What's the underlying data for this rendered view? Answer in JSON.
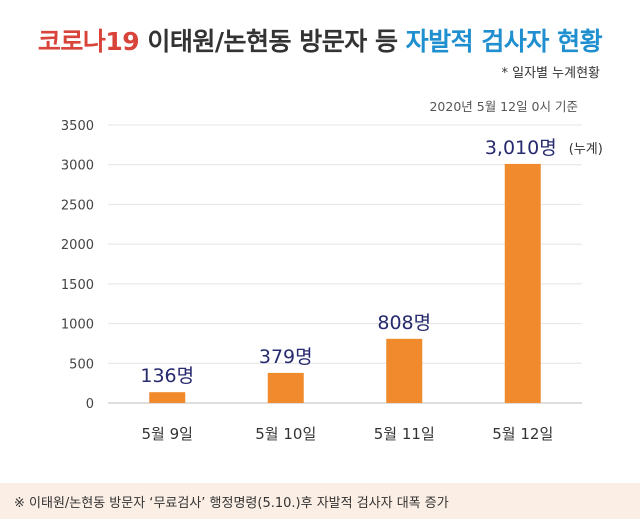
{
  "header": {
    "title_part1": "코로나19",
    "title_part2": " 이태원/논현동 방문자 등 ",
    "title_part3": "자발적 검사자 현황",
    "subtitle": "* 일자별 누계현황",
    "date_note": "2020년 5월 12일 0시 기준"
  },
  "colors": {
    "bar": "#f08a2c",
    "label": "#262a6e",
    "title_red": "#d8433a",
    "title_blue": "#1f8fcf",
    "footer_bg": "#fbeee4"
  },
  "chart_data": {
    "type": "bar",
    "categories": [
      "5월 9일",
      "5월 10일",
      "5월 11일",
      "5월 12일"
    ],
    "values": [
      136,
      379,
      808,
      3010
    ],
    "data_labels": [
      "136명",
      "379명",
      "808명",
      "3,010명"
    ],
    "data_label_suffix_last": "(누계)",
    "y_ticks": [
      "0",
      "500",
      "1000",
      "1500",
      "2000",
      "2500",
      "3000",
      "3500"
    ],
    "ylim": [
      0,
      3500
    ],
    "grid": true,
    "legend": "none"
  },
  "footer": {
    "text": "※ 이태원/논현동 방문자 ‘무료검사’ 행정명령(5.10.)후 자발적 검사자 대폭 증가"
  }
}
